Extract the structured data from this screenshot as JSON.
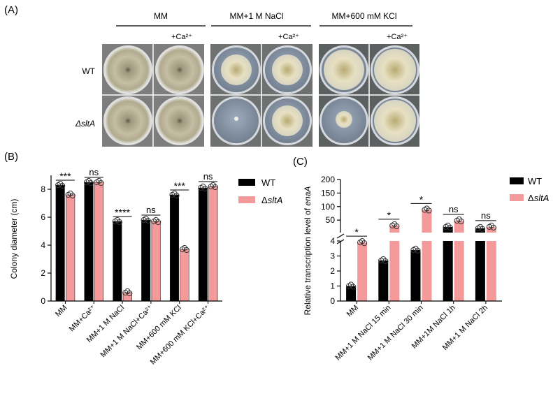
{
  "panelA": {
    "label": "(A)",
    "conditions": [
      {
        "title": "MM",
        "ca_label": "+Ca²⁺"
      },
      {
        "title": "MM+1 M NaCl",
        "ca_label": "+Ca²⁺"
      },
      {
        "title": "MM+600 mM KCl",
        "ca_label": "+Ca²⁺"
      }
    ],
    "rows": [
      "WT",
      "ΔsltA"
    ]
  },
  "chart_data": [
    {
      "type": "bar",
      "panel_label": "(B)",
      "ylabel": "Colony diameter (cm)",
      "ylim": [
        0,
        9
      ],
      "yticks": [
        0,
        2,
        4,
        6,
        8
      ],
      "categories": [
        "MM",
        "MM+Ca²⁺",
        "MM+1 M NaCl",
        "MM+1 M NaCl+Ca²⁺",
        "MM+600 mM KCl",
        "MM+600 mM KCl+Ca²⁺"
      ],
      "series": [
        {
          "name": "WT",
          "color": "#000000",
          "values": [
            8.3,
            8.5,
            5.7,
            5.8,
            7.6,
            8.1
          ]
        },
        {
          "name": "ΔsltA",
          "color": "#f59a9a",
          "values": [
            7.6,
            8.5,
            0.6,
            5.7,
            3.7,
            8.2
          ]
        }
      ],
      "significance": [
        "***",
        "ns",
        "****",
        "ns",
        "***",
        "ns"
      ],
      "legend": "right"
    },
    {
      "type": "bar",
      "panel_label": "(C)",
      "ylabel": "Relative transcription level of enaA",
      "ylim_lower": [
        0,
        4
      ],
      "ylim_upper": [
        4,
        200
      ],
      "yticks_lower": [
        0,
        1,
        2,
        3,
        4
      ],
      "yticks_upper": [
        50,
        100,
        150,
        200
      ],
      "categories": [
        "MM",
        "MM+1 M NaCl 15 min",
        "MM+1 M NaCl 30 min",
        "MM+1M  NaCl 1h",
        "MM+1 M NaCl 2h"
      ],
      "series": [
        {
          "name": "WT",
          "color": "#000000",
          "values": [
            1.0,
            2.7,
            3.4,
            25,
            20
          ]
        },
        {
          "name": "ΔsltA",
          "color": "#f59a9a",
          "values": [
            3.9,
            30,
            88,
            48,
            25
          ]
        }
      ],
      "significance": [
        "*",
        "*",
        "*",
        "ns",
        "ns"
      ],
      "legend": "right"
    }
  ]
}
